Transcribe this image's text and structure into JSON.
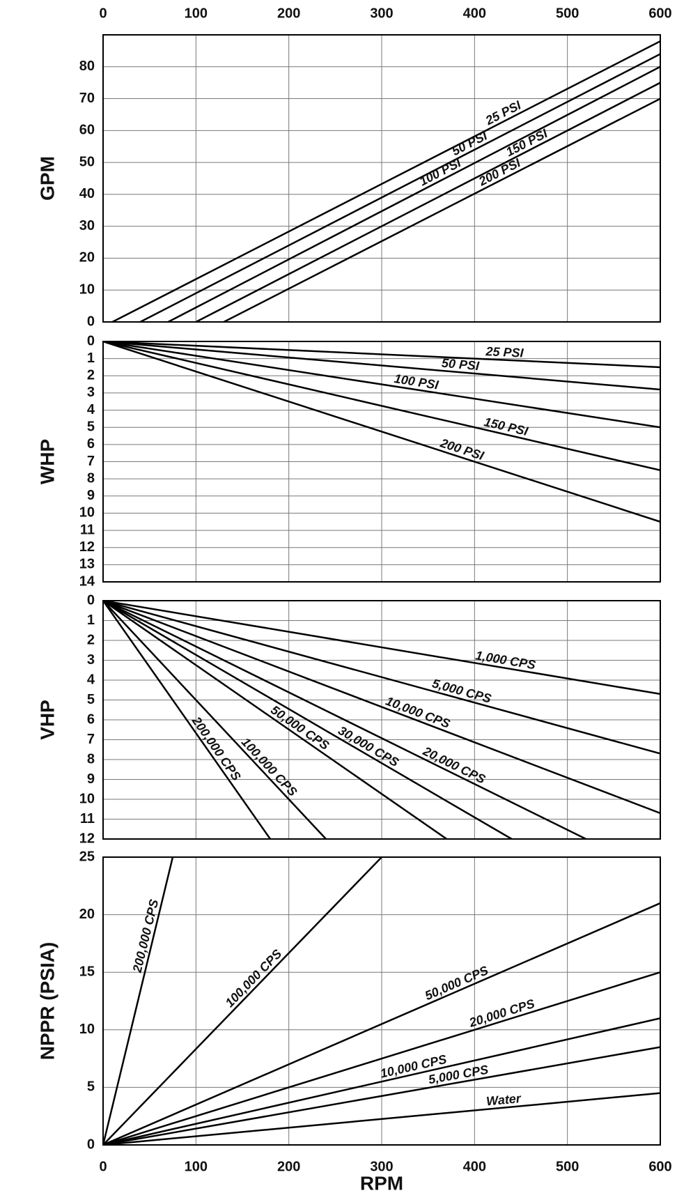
{
  "chart_data": [
    {
      "type": "line",
      "y_label": "GPM",
      "xlim": [
        0,
        600
      ],
      "xticks": [
        0,
        100,
        200,
        300,
        400,
        500,
        600
      ],
      "ylim": [
        0,
        90
      ],
      "yticks": [
        0,
        10,
        20,
        30,
        40,
        50,
        60,
        70,
        80
      ],
      "grid": true,
      "y_inverted": false,
      "series": [
        {
          "name": "25 PSI",
          "color": "#000000",
          "x": [
            10,
            600
          ],
          "values": [
            0,
            88
          ]
        },
        {
          "name": "50 PSI",
          "color": "#000000",
          "x": [
            40,
            600
          ],
          "values": [
            0,
            84
          ]
        },
        {
          "name": "100 PSI",
          "color": "#000000",
          "x": [
            70,
            600
          ],
          "values": [
            0,
            80
          ]
        },
        {
          "name": "150 PSI",
          "color": "#000000",
          "x": [
            100,
            600
          ],
          "values": [
            0,
            75
          ]
        },
        {
          "name": "200 PSI",
          "color": "#000000",
          "x": [
            130,
            600
          ],
          "values": [
            0,
            70
          ]
        }
      ]
    },
    {
      "type": "line",
      "y_label": "WHP",
      "xlim": [
        0,
        600
      ],
      "ylim": [
        0,
        14
      ],
      "yticks": [
        0,
        1,
        2,
        3,
        4,
        5,
        6,
        7,
        8,
        9,
        10,
        11,
        12,
        13,
        14
      ],
      "grid": true,
      "y_inverted": true,
      "series": [
        {
          "name": "25 PSI",
          "color": "#000000",
          "x": [
            0,
            600
          ],
          "values": [
            0,
            1.5
          ]
        },
        {
          "name": "50 PSI",
          "color": "#000000",
          "x": [
            0,
            600
          ],
          "values": [
            0,
            2.8
          ]
        },
        {
          "name": "100 PSI",
          "color": "#000000",
          "x": [
            0,
            600
          ],
          "values": [
            0,
            5
          ]
        },
        {
          "name": "150 PSI",
          "color": "#000000",
          "x": [
            0,
            600
          ],
          "values": [
            0,
            7.5
          ]
        },
        {
          "name": "200 PSI",
          "color": "#000000",
          "x": [
            0,
            600
          ],
          "values": [
            0,
            10.5
          ]
        }
      ]
    },
    {
      "type": "line",
      "y_label": "VHP",
      "xlim": [
        0,
        600
      ],
      "ylim": [
        0,
        12
      ],
      "yticks": [
        0,
        1,
        2,
        3,
        4,
        5,
        6,
        7,
        8,
        9,
        10,
        11,
        12
      ],
      "grid": true,
      "y_inverted": true,
      "series": [
        {
          "name": "1,000 CPS",
          "color": "#000000",
          "x": [
            0,
            600
          ],
          "values": [
            0,
            4.7
          ]
        },
        {
          "name": "5,000 CPS",
          "color": "#000000",
          "x": [
            0,
            600
          ],
          "values": [
            0,
            7.7
          ]
        },
        {
          "name": "10,000 CPS",
          "color": "#000000",
          "x": [
            0,
            600
          ],
          "values": [
            0,
            10.7
          ]
        },
        {
          "name": "20,000 CPS",
          "color": "#000000",
          "x": [
            0,
            520
          ],
          "values": [
            0,
            12
          ]
        },
        {
          "name": "30,000 CPS",
          "color": "#000000",
          "x": [
            0,
            440
          ],
          "values": [
            0,
            12
          ]
        },
        {
          "name": "50,000 CPS",
          "color": "#000000",
          "x": [
            0,
            370
          ],
          "values": [
            0,
            12
          ]
        },
        {
          "name": "100,000 CPS",
          "color": "#000000",
          "x": [
            0,
            240
          ],
          "values": [
            0,
            12
          ]
        },
        {
          "name": "200,000 CPS",
          "color": "#000000",
          "x": [
            0,
            180
          ],
          "values": [
            0,
            12
          ]
        }
      ]
    },
    {
      "type": "line",
      "y_label": "NPPR (PSIA)",
      "x_label": "RPM",
      "xlim": [
        0,
        600
      ],
      "xticks": [
        0,
        100,
        200,
        300,
        400,
        500,
        600
      ],
      "ylim": [
        0,
        25
      ],
      "yticks": [
        0,
        5,
        10,
        15,
        20,
        25
      ],
      "grid": true,
      "y_inverted": false,
      "series": [
        {
          "name": "Water",
          "color": "#000000",
          "x": [
            0,
            600
          ],
          "values": [
            0,
            4.5
          ]
        },
        {
          "name": "5,000 CPS",
          "color": "#000000",
          "x": [
            0,
            600
          ],
          "values": [
            0,
            8.5
          ]
        },
        {
          "name": "10,000 CPS",
          "color": "#000000",
          "x": [
            0,
            600
          ],
          "values": [
            0,
            11
          ]
        },
        {
          "name": "20,000 CPS",
          "color": "#000000",
          "x": [
            0,
            600
          ],
          "values": [
            0,
            15
          ]
        },
        {
          "name": "50,000 CPS",
          "color": "#000000",
          "x": [
            0,
            600
          ],
          "values": [
            0,
            21
          ]
        },
        {
          "name": "100,000 CPS",
          "color": "#000000",
          "x": [
            0,
            300
          ],
          "values": [
            0,
            25
          ]
        },
        {
          "name": "200,000 CPS",
          "color": "#000000",
          "x": [
            0,
            75
          ],
          "values": [
            0,
            25
          ]
        }
      ]
    }
  ]
}
